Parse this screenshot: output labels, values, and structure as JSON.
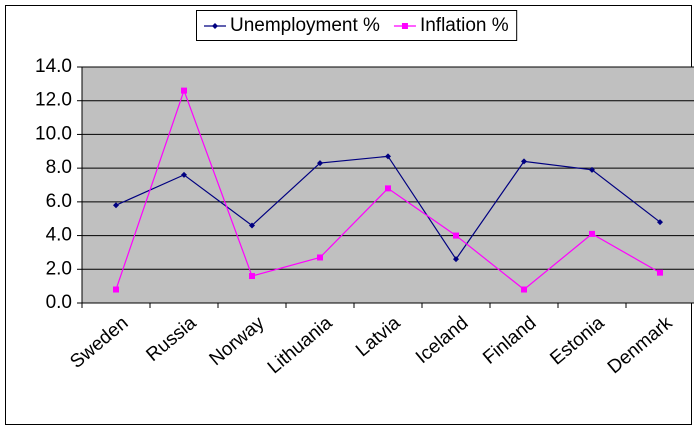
{
  "chart_data": {
    "type": "line",
    "categories": [
      "Sweden",
      "Russia",
      "Norway",
      "Lithuania",
      "Latvia",
      "Iceland",
      "Finland",
      "Estonia",
      "Denmark"
    ],
    "series": [
      {
        "name": "Unemployment %",
        "color": "#000080",
        "marker": "diamond",
        "values": [
          5.8,
          7.6,
          4.6,
          8.3,
          8.7,
          2.6,
          8.4,
          7.9,
          4.8
        ]
      },
      {
        "name": "Inflation %",
        "color": "#ff00ff",
        "marker": "square",
        "values": [
          0.8,
          12.6,
          1.6,
          2.7,
          6.8,
          4.0,
          0.8,
          4.1,
          1.8
        ]
      }
    ],
    "ylim": [
      0,
      14
    ],
    "yticks": [
      {
        "value": 0,
        "label": "0.0"
      },
      {
        "value": 2,
        "label": "2.0"
      },
      {
        "value": 4,
        "label": "4.0"
      },
      {
        "value": 6,
        "label": "6.0"
      },
      {
        "value": 8,
        "label": "8.0"
      },
      {
        "value": 10,
        "label": "10.0"
      },
      {
        "value": 12,
        "label": "12.0"
      },
      {
        "value": 14,
        "label": "14.0"
      }
    ],
    "grid": true,
    "legend": "top",
    "plot_background": "#c0c0c0"
  }
}
